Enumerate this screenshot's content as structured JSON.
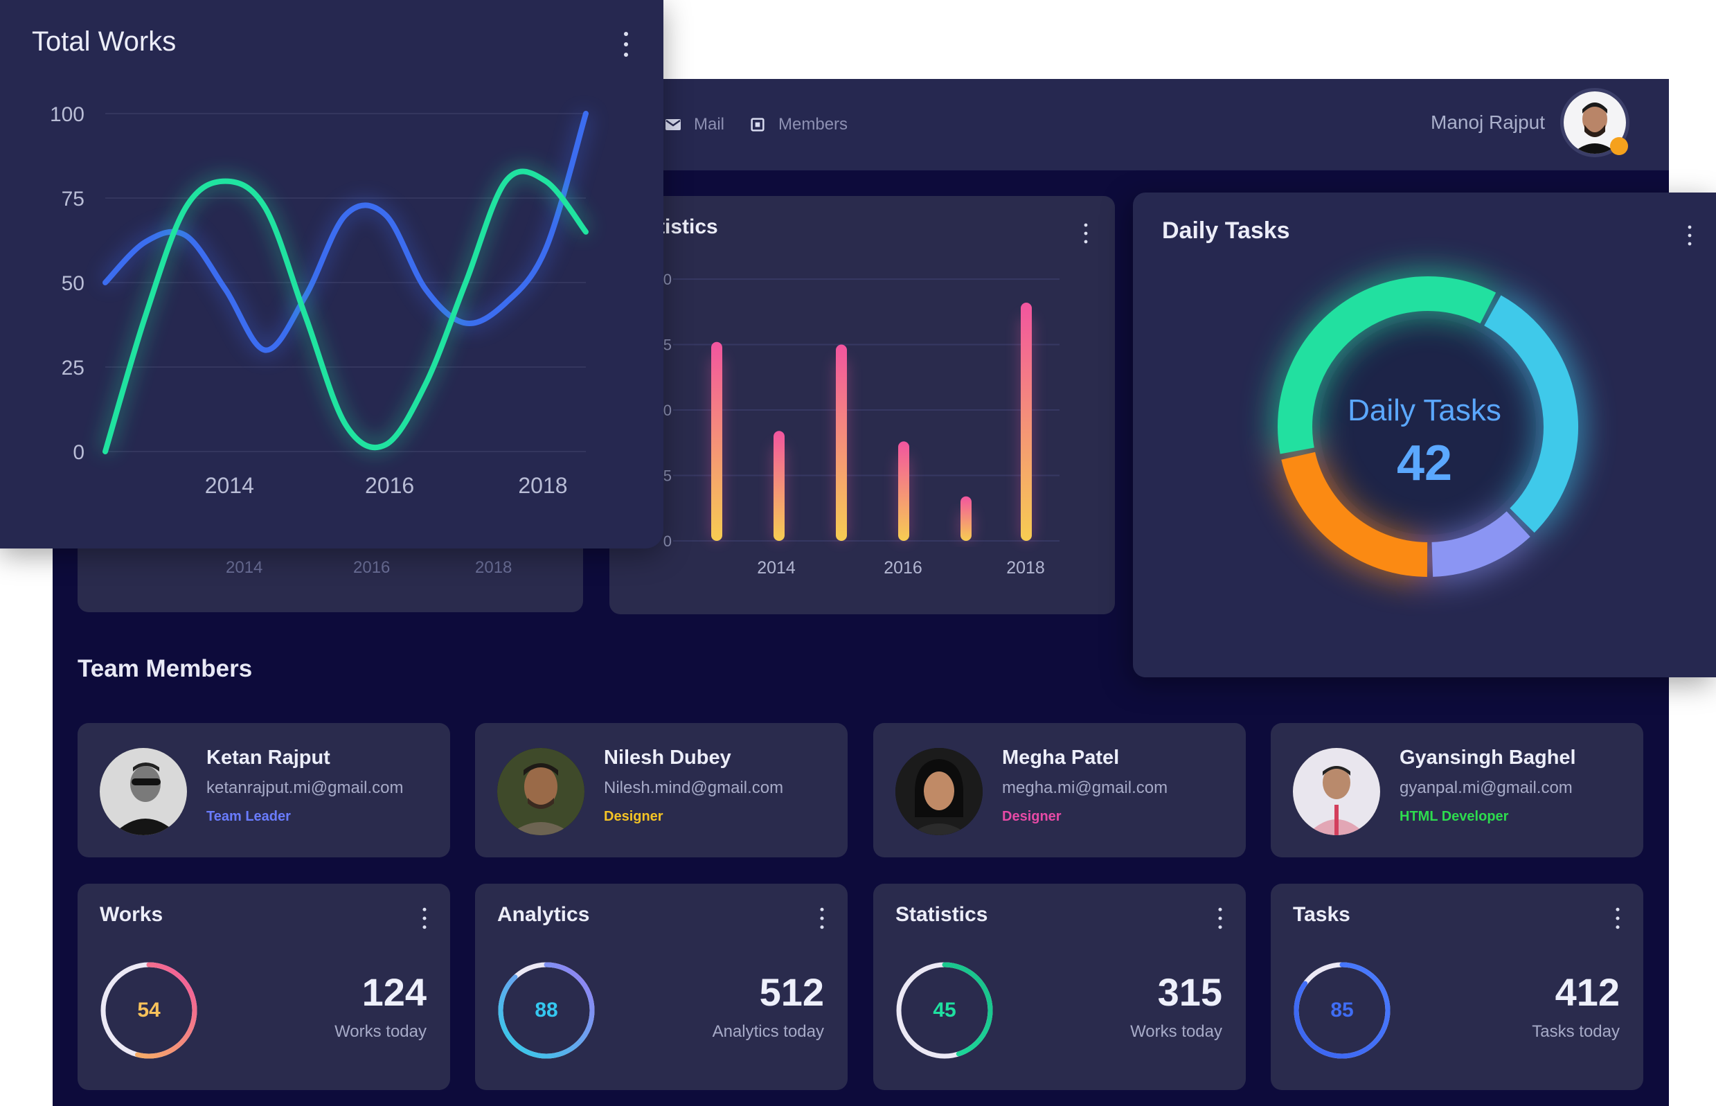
{
  "topbar": {
    "nav": [
      {
        "label": "Mail",
        "icon": "mail-icon"
      },
      {
        "label": "Members",
        "icon": "members-icon"
      }
    ],
    "user_name": "Manoj Rajput"
  },
  "colors": {
    "background": "#0d0b3b",
    "card": "#2a2b4d",
    "green": "#20e3a0",
    "blue": "#3c6df0",
    "orange": "#fb8a13",
    "pink": "#f25aa1"
  },
  "ghost_card": {
    "tick_labels": [
      "2014",
      "2016",
      "2018"
    ]
  },
  "statistics_card": {
    "title": "Statistics",
    "visible_title": "tistics",
    "y_ticks_partial": [
      "0",
      "5",
      "0",
      "5",
      "0"
    ]
  },
  "total_works": {
    "title": "Total Works"
  },
  "daily_tasks": {
    "title": "Daily Tasks",
    "center_title": "Daily Tasks",
    "center_value": "42"
  },
  "team": {
    "title": "Team Members",
    "members": [
      {
        "name": "Ketan Rajput",
        "email": "ketanrajput.mi@gmail.com",
        "role": "Team Leader",
        "role_color": "#6a7cff"
      },
      {
        "name": "Nilesh Dubey",
        "email": "Nilesh.mind@gmail.com",
        "role": "Designer",
        "role_color": "#f3c325"
      },
      {
        "name": "Megha Patel",
        "email": "megha.mi@gmail.com",
        "role": "Designer",
        "role_color": "#e74aa6"
      },
      {
        "name": "Gyansingh Baghel",
        "email": "gyanpal.mi@gmail.com",
        "role": "HTML Developer",
        "role_color": "#2ddb4e"
      }
    ]
  },
  "stats": [
    {
      "title": "Works",
      "ring_value": "54",
      "value": "124",
      "caption": "Works today",
      "ring_color": "#f7a94b",
      "text_color": "#f7c25b"
    },
    {
      "title": "Analytics",
      "ring_value": "88",
      "value": "512",
      "caption": "Analytics today",
      "ring_color": "#2fd0e8",
      "text_color": "#35c8f0"
    },
    {
      "title": "Statistics",
      "ring_value": "45",
      "value": "315",
      "caption": "Works today",
      "ring_color": "#1fe0a0",
      "text_color": "#1fe0a0"
    },
    {
      "title": "Tasks",
      "ring_value": "85",
      "value": "412",
      "caption": "Tasks today",
      "ring_color": "#3b64f0",
      "text_color": "#3f6df5"
    }
  ],
  "chart_data": [
    {
      "type": "line",
      "title": "Total Works",
      "x": [
        2012.5,
        2013,
        2013.5,
        2014,
        2014.5,
        2015,
        2015.5,
        2016,
        2016.5,
        2017,
        2017.5,
        2018,
        2018.5
      ],
      "series": [
        {
          "name": "blue",
          "color": "#3c6df0",
          "values": [
            50,
            62,
            64,
            48,
            30,
            46,
            70,
            70,
            48,
            38,
            44,
            60,
            100
          ]
        },
        {
          "name": "green",
          "color": "#20e3a0",
          "values": [
            0,
            40,
            72,
            80,
            72,
            40,
            8,
            2,
            20,
            50,
            80,
            80,
            65
          ]
        }
      ],
      "x_tick_labels": [
        "2014",
        "2016",
        "2018"
      ],
      "y_tick_labels": [
        "100",
        "75",
        "50",
        "25",
        "0"
      ],
      "ylim": [
        0,
        100
      ],
      "grid": true
    },
    {
      "type": "bar",
      "title": "Statistics",
      "categories": [
        "2013.5",
        "2014",
        "2015",
        "2015.5",
        "2016",
        "2017.5"
      ],
      "values": [
        76,
        42,
        75,
        38,
        17,
        91
      ],
      "x_tick_labels": [
        "2014",
        "2016",
        "2018"
      ],
      "ylim": [
        0,
        100
      ]
    },
    {
      "type": "pie",
      "title": "Daily Tasks",
      "labels": [
        "cyan-blue",
        "lavender",
        "orange",
        "green"
      ],
      "values": [
        30,
        12,
        22,
        36
      ],
      "colors": [
        "#3fc9ea",
        "#8b95f3",
        "#fb8a13",
        "#22e0a0"
      ]
    }
  ]
}
